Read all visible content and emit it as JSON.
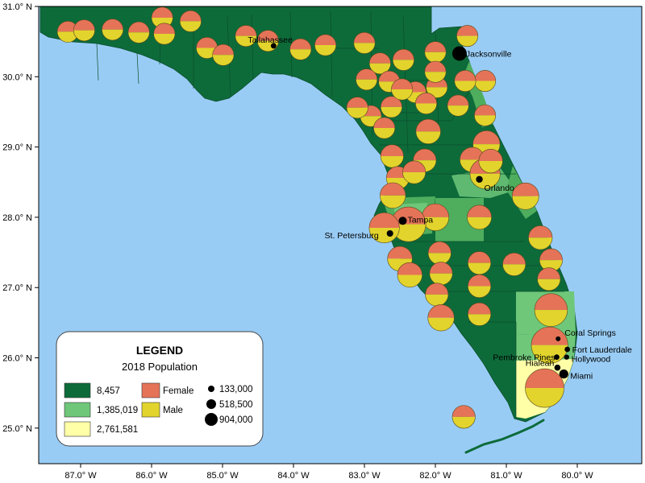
{
  "map": {
    "lon_ticks": [
      "87.0° W",
      "86.0° W",
      "85.0° W",
      "84.0° W",
      "83.0° W",
      "82.0° W",
      "81.0° W",
      "80.0° W"
    ],
    "lat_ticks": [
      "31.0° N",
      "30.0° N",
      "29.0° N",
      "28.0° N",
      "27.0° N",
      "26.0° N",
      "25.0° N"
    ],
    "colors": {
      "water": "#99ccf5",
      "choropleth_low": "#0d6b3a",
      "choropleth_mid": "#6fc77a",
      "choropleth_high": "#ffffa8",
      "female": "#e57358",
      "male": "#e2d42c"
    },
    "cities": [
      {
        "name": "Tallahassee",
        "lon": -84.28,
        "lat": 30.44,
        "population": 191049
      },
      {
        "name": "Jacksonville",
        "lon": -81.66,
        "lat": 30.33,
        "population": 903889
      },
      {
        "name": "Orlando",
        "lon": -81.38,
        "lat": 28.54,
        "population": 285713
      },
      {
        "name": "Tampa",
        "lon": -82.46,
        "lat": 27.95,
        "population": 392890
      },
      {
        "name": "St. Petersburg",
        "lon": -82.64,
        "lat": 27.77,
        "population": 265098
      },
      {
        "name": "Coral Springs",
        "lon": -80.27,
        "lat": 26.27,
        "population": 133507
      },
      {
        "name": "Fort Lauderdale",
        "lon": -80.14,
        "lat": 26.12,
        "population": 182760
      },
      {
        "name": "Pembroke Pines",
        "lon": -80.29,
        "lat": 26.01,
        "population": 173591
      },
      {
        "name": "Hollywood",
        "lon": -80.15,
        "lat": 26.01,
        "population": 154823
      },
      {
        "name": "Hialeah",
        "lon": -80.28,
        "lat": 25.86,
        "population": 238942
      },
      {
        "name": "Miami",
        "lon": -80.19,
        "lat": 25.77,
        "population": 470914
      }
    ]
  },
  "legend": {
    "title": "LEGEND",
    "subtitle": "2018 Population",
    "choropleth_classes": [
      "8,457",
      "1,385,019",
      "2,761,581"
    ],
    "pie_classes": [
      "Female",
      "Male"
    ],
    "city_size_classes": [
      "133,000",
      "518,500",
      "904,000"
    ]
  },
  "counties": [
    {
      "id": 1,
      "lon": -87.18,
      "lat": 30.64,
      "population": 67000,
      "female_share": 0.5
    },
    {
      "id": 2,
      "lon": -86.95,
      "lat": 30.66,
      "population": 70000,
      "female_share": 0.5
    },
    {
      "id": 3,
      "lon": -86.55,
      "lat": 30.67,
      "population": 70000,
      "female_share": 0.5
    },
    {
      "id": 4,
      "lon": -86.18,
      "lat": 30.63,
      "population": 70000,
      "female_share": 0.5
    },
    {
      "id": 5,
      "lon": -85.85,
      "lat": 30.84,
      "population": 70000,
      "female_share": 0.5
    },
    {
      "id": 6,
      "lon": -85.82,
      "lat": 30.61,
      "population": 70000,
      "female_share": 0.5
    },
    {
      "id": 7,
      "lon": -85.45,
      "lat": 30.79,
      "population": 70000,
      "female_share": 0.5
    },
    {
      "id": 8,
      "lon": -85.22,
      "lat": 30.41,
      "population": 70000,
      "female_share": 0.5
    },
    {
      "id": 9,
      "lon": -84.99,
      "lat": 30.31,
      "population": 70000,
      "female_share": 0.5
    },
    {
      "id": 10,
      "lon": -84.67,
      "lat": 30.58,
      "population": 70000,
      "female_share": 0.5
    },
    {
      "id": 11,
      "lon": -84.36,
      "lat": 30.51,
      "population": 70000,
      "female_share": 0.5
    },
    {
      "id": 12,
      "lon": -83.9,
      "lat": 30.39,
      "population": 70000,
      "female_share": 0.5
    },
    {
      "id": 13,
      "lon": -83.55,
      "lat": 30.45,
      "population": 70000,
      "female_share": 0.5
    },
    {
      "id": 14,
      "lon": -83.0,
      "lat": 30.48,
      "population": 70000,
      "female_share": 0.5
    },
    {
      "id": 15,
      "lon": -82.78,
      "lat": 30.19,
      "population": 70000,
      "female_share": 0.5
    },
    {
      "id": 16,
      "lon": -82.45,
      "lat": 30.24,
      "population": 70000,
      "female_share": 0.5
    },
    {
      "id": 17,
      "lon": -82.0,
      "lat": 30.35,
      "population": 70000,
      "female_share": 0.5
    },
    {
      "id": 18,
      "lon": -81.55,
      "lat": 30.58,
      "population": 70000,
      "female_share": 0.5
    },
    {
      "id": 19,
      "lon": -81.3,
      "lat": 29.94,
      "population": 70000,
      "female_share": 0.5
    },
    {
      "id": 20,
      "lon": -81.58,
      "lat": 29.94,
      "population": 70000,
      "female_share": 0.5
    },
    {
      "id": 21,
      "lon": -81.98,
      "lat": 29.85,
      "population": 70000,
      "female_share": 0.5
    },
    {
      "id": 22,
      "lon": -82.28,
      "lat": 29.78,
      "population": 70000,
      "female_share": 0.5
    },
    {
      "id": 23,
      "lon": -82.62,
      "lat": 29.57,
      "population": 70000,
      "female_share": 0.5
    },
    {
      "id": 24,
      "lon": -82.13,
      "lat": 29.62,
      "population": 70000,
      "female_share": 0.5
    },
    {
      "id": 25,
      "lon": -81.68,
      "lat": 29.59,
      "population": 70000,
      "female_share": 0.5
    },
    {
      "id": 26,
      "lon": -81.3,
      "lat": 29.45,
      "population": 70000,
      "female_share": 0.5
    },
    {
      "id": 27,
      "lon": -82.91,
      "lat": 29.44,
      "population": 70000,
      "female_share": 0.5
    },
    {
      "id": 28,
      "lon": -83.1,
      "lat": 29.56,
      "population": 70000,
      "female_share": 0.5
    },
    {
      "id": 29,
      "lon": -82.97,
      "lat": 29.96,
      "population": 70000,
      "female_share": 0.5
    },
    {
      "id": 30,
      "lon": -82.65,
      "lat": 29.93,
      "population": 70000,
      "female_share": 0.5
    },
    {
      "id": 31,
      "lon": -82.47,
      "lat": 29.82,
      "population": 70000,
      "female_share": 0.5
    },
    {
      "id": 32,
      "lon": -82.0,
      "lat": 30.07,
      "population": 70000,
      "female_share": 0.5
    },
    {
      "id": 33,
      "lon": -82.72,
      "lat": 29.27,
      "population": 70000,
      "female_share": 0.5
    },
    {
      "id": 34,
      "lon": -82.1,
      "lat": 29.22,
      "population": 140000,
      "female_share": 0.5
    },
    {
      "id": 35,
      "lon": -81.28,
      "lat": 29.04,
      "population": 200000,
      "female_share": 0.5
    },
    {
      "id": 36,
      "lon": -81.48,
      "lat": 28.82,
      "population": 140000,
      "female_share": 0.5
    },
    {
      "id": 37,
      "lon": -82.61,
      "lat": 28.87,
      "population": 100000,
      "female_share": 0.5
    },
    {
      "id": 38,
      "lon": -82.15,
      "lat": 28.81,
      "population": 100000,
      "female_share": 0.5
    },
    {
      "id": 39,
      "lon": -82.53,
      "lat": 28.56,
      "population": 100000,
      "female_share": 0.5
    },
    {
      "id": 40,
      "lon": -82.3,
      "lat": 28.64,
      "population": 100000,
      "female_share": 0.5
    },
    {
      "id": 41,
      "lon": -81.3,
      "lat": 28.62,
      "population": 300000,
      "female_share": 0.5
    },
    {
      "id": 42,
      "lon": -81.22,
      "lat": 28.8,
      "population": 120000,
      "female_share": 0.5
    },
    {
      "id": 43,
      "lon": -80.73,
      "lat": 28.3,
      "population": 190000,
      "female_share": 0.5
    },
    {
      "id": 44,
      "lon": -82.6,
      "lat": 28.31,
      "population": 160000,
      "female_share": 0.5
    },
    {
      "id": 45,
      "lon": -82.0,
      "lat": 28.0,
      "population": 200000,
      "female_share": 0.5
    },
    {
      "id": 46,
      "lon": -81.38,
      "lat": 28.0,
      "population": 130000,
      "female_share": 0.5
    },
    {
      "id": 47,
      "lon": -82.38,
      "lat": 27.9,
      "population": 480000,
      "female_share": 0.5
    },
    {
      "id": 48,
      "lon": -82.72,
      "lat": 27.85,
      "population": 300000,
      "female_share": 0.5
    },
    {
      "id": 49,
      "lon": -80.52,
      "lat": 27.71,
      "population": 120000,
      "female_share": 0.5
    },
    {
      "id": 50,
      "lon": -82.5,
      "lat": 27.41,
      "population": 140000,
      "female_share": 0.5
    },
    {
      "id": 51,
      "lon": -81.94,
      "lat": 27.49,
      "population": 100000,
      "female_share": 0.5
    },
    {
      "id": 52,
      "lon": -81.38,
      "lat": 27.35,
      "population": 100000,
      "female_share": 0.5
    },
    {
      "id": 53,
      "lon": -80.37,
      "lat": 27.39,
      "population": 100000,
      "female_share": 0.5
    },
    {
      "id": 54,
      "lon": -80.89,
      "lat": 27.33,
      "population": 100000,
      "female_share": 0.5
    },
    {
      "id": 55,
      "lon": -82.36,
      "lat": 27.18,
      "population": 140000,
      "female_share": 0.5
    },
    {
      "id": 56,
      "lon": -81.92,
      "lat": 27.2,
      "population": 100000,
      "female_share": 0.5
    },
    {
      "id": 57,
      "lon": -80.4,
      "lat": 27.12,
      "population": 100000,
      "female_share": 0.5
    },
    {
      "id": 58,
      "lon": -81.38,
      "lat": 27.02,
      "population": 100000,
      "female_share": 0.5
    },
    {
      "id": 59,
      "lon": -81.98,
      "lat": 26.9,
      "population": 100000,
      "female_share": 0.5
    },
    {
      "id": 60,
      "lon": -80.37,
      "lat": 26.68,
      "population": 400000,
      "female_share": 0.5
    },
    {
      "id": 61,
      "lon": -81.38,
      "lat": 26.62,
      "population": 100000,
      "female_share": 0.5
    },
    {
      "id": 62,
      "lon": -81.92,
      "lat": 26.57,
      "population": 180000,
      "female_share": 0.5
    },
    {
      "id": 63,
      "lon": -80.39,
      "lat": 26.18,
      "population": 560000,
      "female_share": 0.5
    },
    {
      "id": 64,
      "lon": -80.46,
      "lat": 25.57,
      "population": 700000,
      "female_share": 0.5
    },
    {
      "id": 65,
      "lon": -81.6,
      "lat": 25.16,
      "population": 100000,
      "female_share": 0.5
    }
  ]
}
